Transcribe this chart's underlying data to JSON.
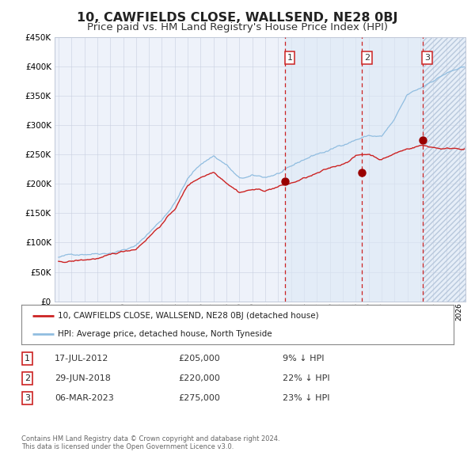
{
  "title": "10, CAWFIELDS CLOSE, WALLSEND, NE28 0BJ",
  "subtitle": "Price paid vs. HM Land Registry's House Price Index (HPI)",
  "title_fontsize": 11.5,
  "subtitle_fontsize": 9.5,
  "ylim": [
    0,
    450000
  ],
  "yticks": [
    0,
    50000,
    100000,
    150000,
    200000,
    250000,
    300000,
    350000,
    400000,
    450000
  ],
  "background_color": "#ffffff",
  "plot_bg_color": "#eef2fa",
  "grid_color": "#c8cfe0",
  "hpi_line_color": "#90bde0",
  "price_line_color": "#cc2222",
  "sale_marker_color": "#990000",
  "dashed_line_color": "#cc2222",
  "sale_events": [
    {
      "label": "1",
      "price": 205000,
      "x": 2012.54
    },
    {
      "label": "2",
      "price": 220000,
      "x": 2018.49
    },
    {
      "label": "3",
      "price": 275000,
      "x": 2023.17
    }
  ],
  "legend_entries": [
    {
      "label": "10, CAWFIELDS CLOSE, WALLSEND, NE28 0BJ (detached house)",
      "color": "#cc2222"
    },
    {
      "label": "HPI: Average price, detached house, North Tyneside",
      "color": "#90bde0"
    }
  ],
  "table_rows": [
    {
      "num": "1",
      "date": "17-JUL-2012",
      "price": "£205,000",
      "hpi": "9% ↓ HPI"
    },
    {
      "num": "2",
      "date": "29-JUN-2018",
      "price": "£220,000",
      "hpi": "22% ↓ HPI"
    },
    {
      "num": "3",
      "date": "06-MAR-2023",
      "price": "£275,000",
      "hpi": "23% ↓ HPI"
    }
  ],
  "footnote": "Contains HM Land Registry data © Crown copyright and database right 2024.\nThis data is licensed under the Open Government Licence v3.0.",
  "hpi_anchors_x": [
    1995,
    1997,
    1999,
    2001,
    2003,
    2004,
    2005,
    2006,
    2007,
    2008,
    2009,
    2010,
    2011,
    2012,
    2013,
    2014,
    2015,
    2016,
    2017,
    2018,
    2019,
    2020,
    2021,
    2022,
    2023,
    2024,
    2025,
    2026
  ],
  "hpi_anchors_y": [
    75000,
    82000,
    88000,
    100000,
    145000,
    175000,
    215000,
    240000,
    255000,
    240000,
    215000,
    218000,
    215000,
    222000,
    230000,
    242000,
    252000,
    258000,
    268000,
    278000,
    285000,
    283000,
    310000,
    350000,
    360000,
    375000,
    388000,
    395000
  ],
  "price_anchors_x": [
    1995,
    1997,
    1999,
    2001,
    2003,
    2004,
    2005,
    2006,
    2007,
    2008,
    2009,
    2010,
    2011,
    2012,
    2013,
    2014,
    2015,
    2016,
    2017,
    2018,
    2019,
    2020,
    2021,
    2022,
    2023,
    2024,
    2025,
    2026
  ],
  "price_anchors_y": [
    68000,
    72000,
    78000,
    90000,
    135000,
    160000,
    200000,
    215000,
    225000,
    210000,
    195000,
    200000,
    198000,
    205000,
    210000,
    218000,
    225000,
    232000,
    240000,
    255000,
    258000,
    250000,
    260000,
    268000,
    275000,
    272000,
    270000,
    272000
  ]
}
